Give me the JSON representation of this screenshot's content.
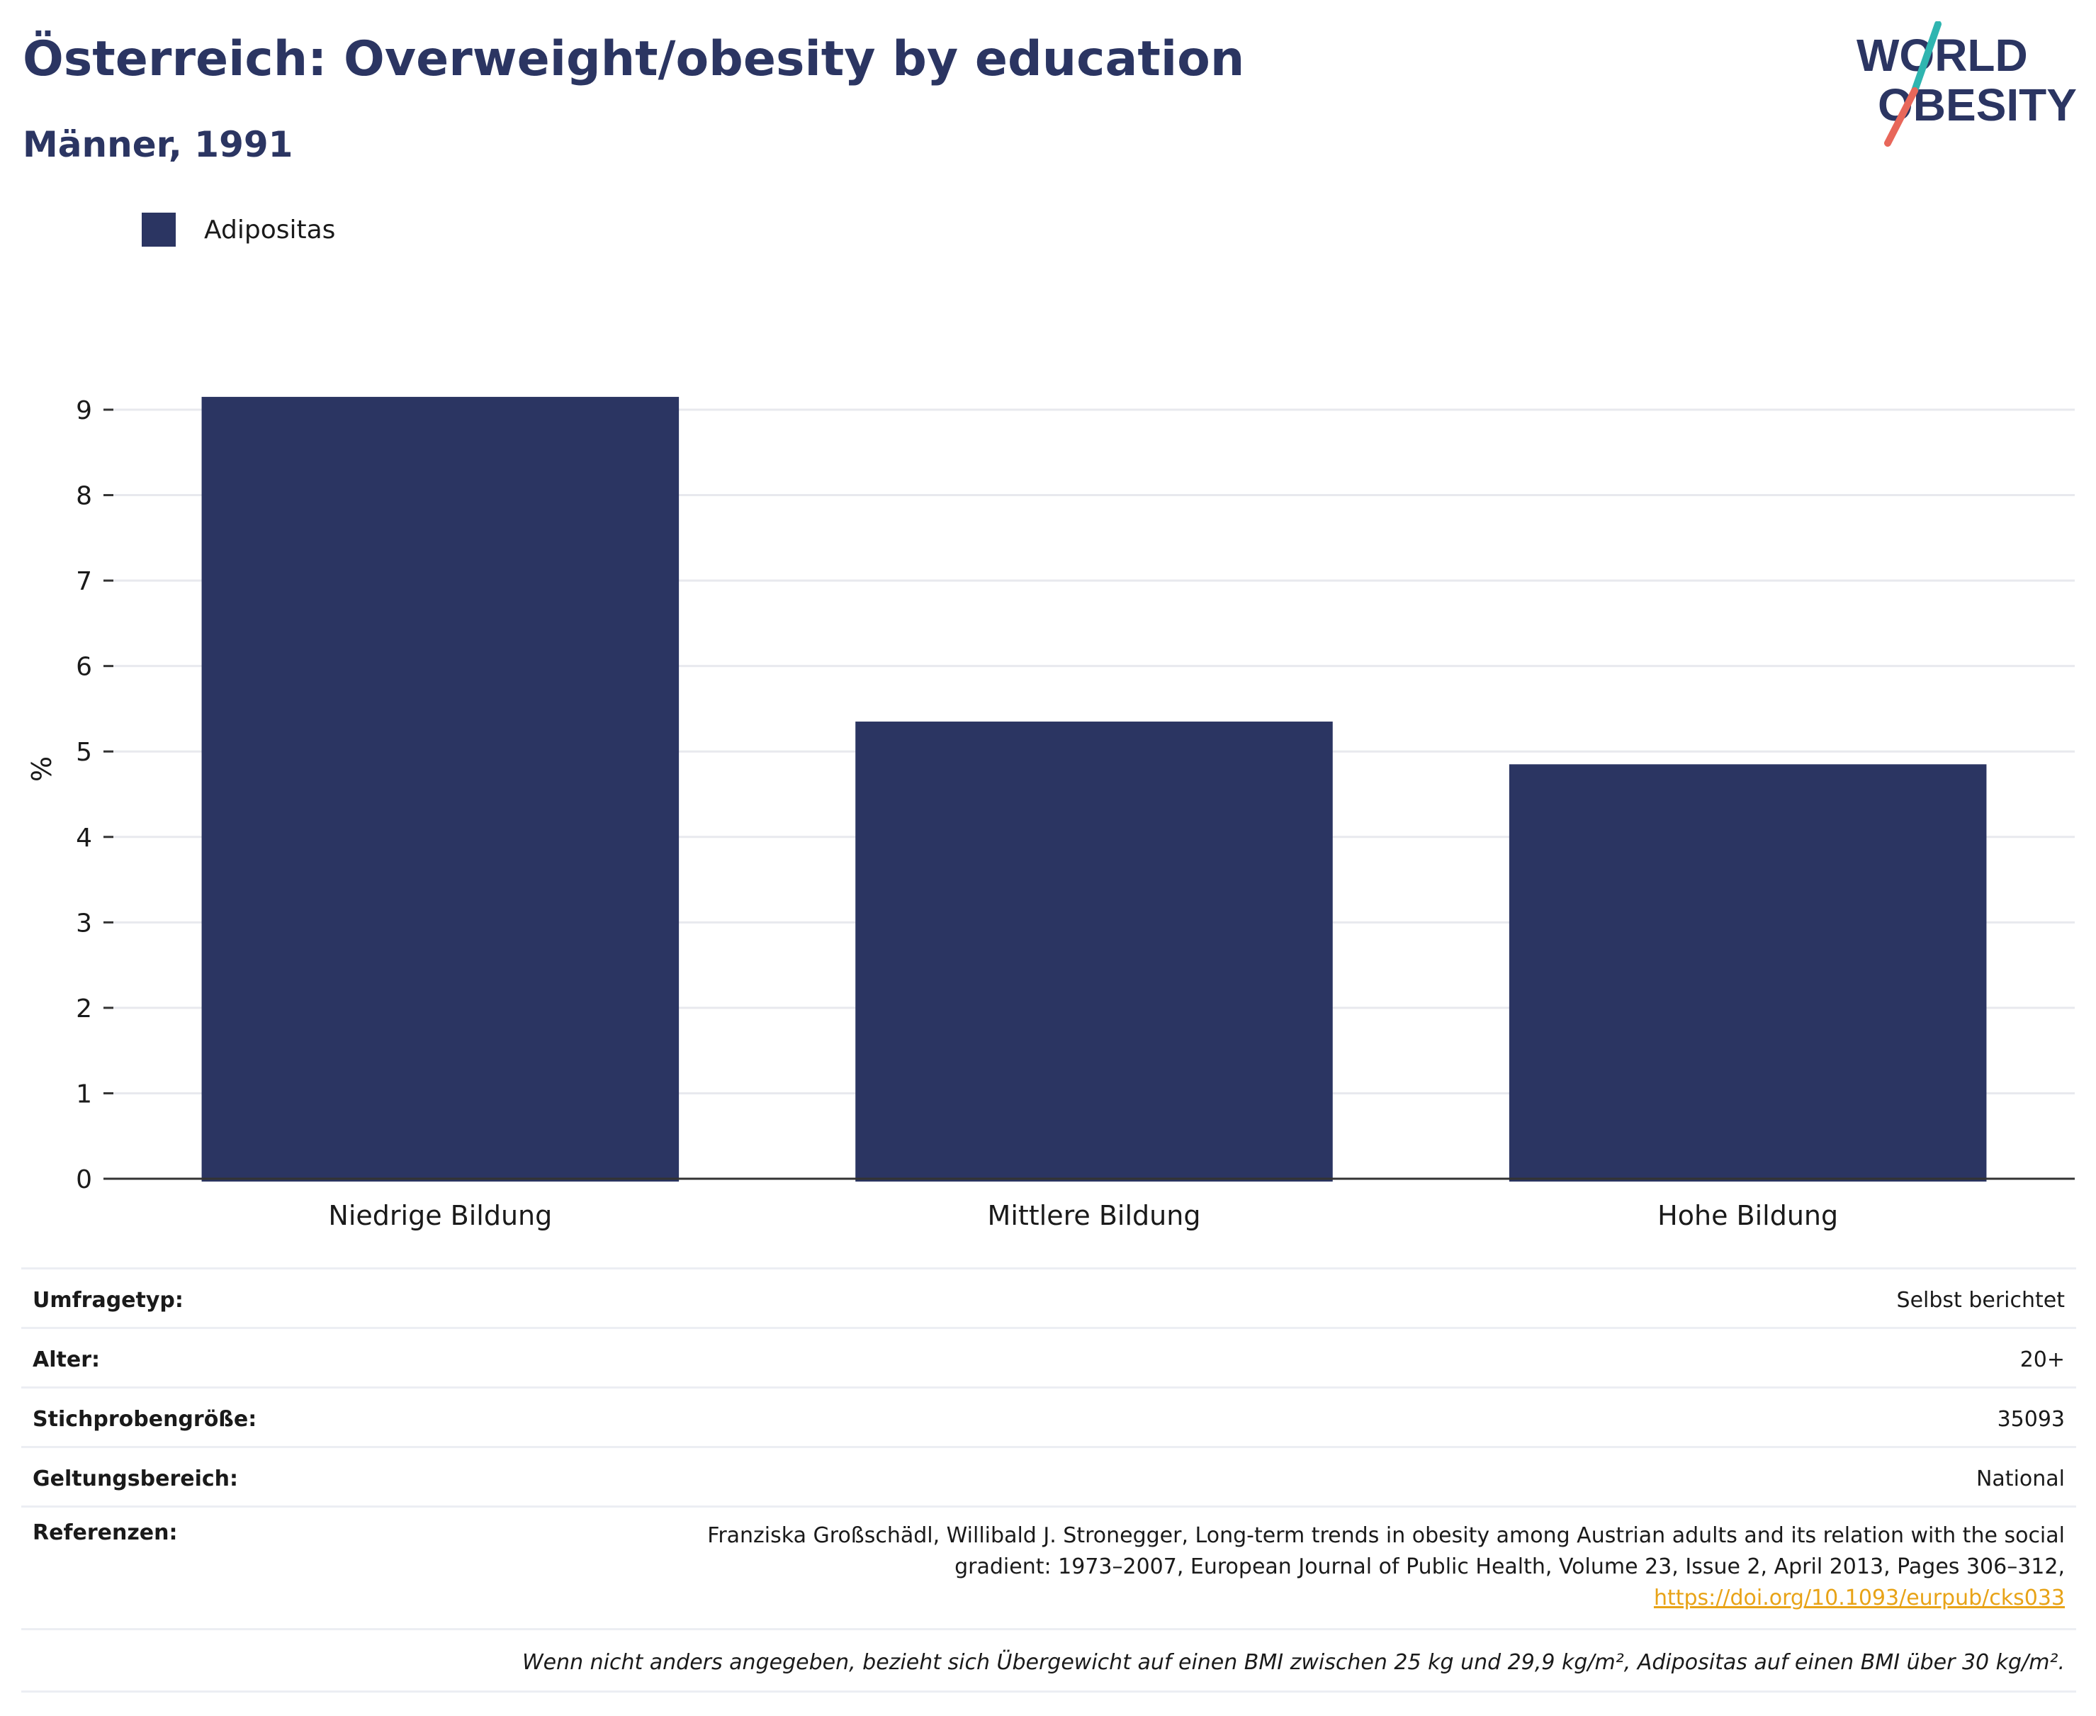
{
  "title": "Österreich: Overweight/obesity by education",
  "subtitle": "Männer, 1991",
  "logo": {
    "line1": "WORLD",
    "line2": "OBESITY"
  },
  "colors": {
    "bar": "#2b3562",
    "title": "#2b3562",
    "grid": "#e8e9ee",
    "axis": "#333333",
    "link": "#e8a317",
    "logo_teal": "#2fb5b0",
    "logo_coral": "#e8675a"
  },
  "chart_data": {
    "type": "bar",
    "categories": [
      "Niedrige Bildung",
      "Mittlere Bildung",
      "Hohe Bildung"
    ],
    "series": [
      {
        "name": "Adipositas",
        "values": [
          9.15,
          5.35,
          4.85
        ]
      }
    ],
    "ylabel": "%",
    "xlabel": "",
    "ylim": [
      0,
      9.3
    ],
    "yticks": [
      0,
      1,
      2,
      3,
      4,
      5,
      6,
      7,
      8,
      9
    ],
    "grid": true,
    "legend_position": "top-left"
  },
  "info": {
    "survey_type_label": "Umfragetyp:",
    "survey_type": "Selbst berichtet",
    "age_label": "Alter:",
    "age": "20+",
    "sample_size_label": "Stichprobengröße:",
    "sample_size": "35093",
    "scope_label": "Geltungsbereich:",
    "scope": "National",
    "references_label": "Referenzen:",
    "reference_line1": "Franziska Großschädl, Willibald J. Stronegger, Long-term trends in obesity among Austrian adults and its relation with the social",
    "reference_line2": "gradient: 1973–2007, European Journal of Public Health, Volume 23, Issue 2, April 2013, Pages 306–312,",
    "reference_doi": "https://doi.org/10.1093/eurpub/cks033",
    "footnote": "Wenn nicht anders angegeben, bezieht sich Übergewicht auf einen BMI zwischen 25 kg und 29,9 kg/m², Adipositas auf einen BMI über 30 kg/m²."
  }
}
